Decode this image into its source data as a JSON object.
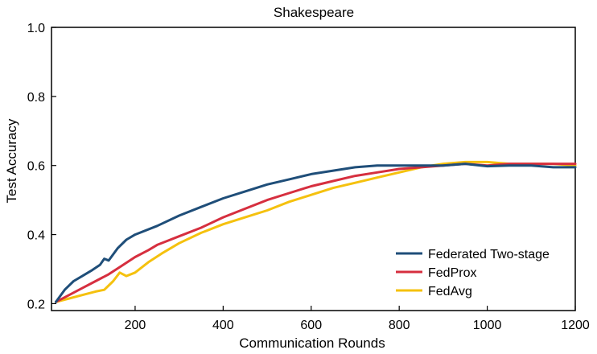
{
  "chart_data": {
    "type": "line",
    "title": "Shakespeare",
    "xlabel": "Communication Rounds",
    "ylabel": "Test  Accuracy",
    "xlim": [
      10,
      1200
    ],
    "ylim": [
      0.18,
      1.0
    ],
    "xticks": [
      200,
      400,
      600,
      800,
      1000,
      1200
    ],
    "xtick_labels": [
      "200",
      "400",
      "600",
      "800",
      "1000",
      "1200"
    ],
    "yticks": [
      0.2,
      0.4,
      0.6,
      0.8,
      1.0
    ],
    "ytick_labels": [
      "0.2",
      "0.4",
      "0.6",
      "0.8",
      "1.0"
    ],
    "grid": false,
    "legend_position": "bottom-right",
    "series": [
      {
        "name": "Federated Two-stage",
        "color": "#1f4e79",
        "x": [
          20,
          40,
          60,
          80,
          100,
          120,
          130,
          140,
          160,
          180,
          200,
          250,
          300,
          350,
          400,
          450,
          500,
          550,
          600,
          650,
          700,
          750,
          800,
          850,
          900,
          950,
          1000,
          1050,
          1100,
          1150,
          1200
        ],
        "y": [
          0.205,
          0.24,
          0.265,
          0.28,
          0.295,
          0.312,
          0.33,
          0.325,
          0.36,
          0.385,
          0.4,
          0.425,
          0.455,
          0.48,
          0.505,
          0.525,
          0.545,
          0.56,
          0.575,
          0.585,
          0.595,
          0.6,
          0.6,
          0.6,
          0.6,
          0.605,
          0.598,
          0.6,
          0.6,
          0.595,
          0.595
        ]
      },
      {
        "name": "FedProx",
        "color": "#d62f3f",
        "x": [
          20,
          50,
          80,
          110,
          140,
          170,
          200,
          230,
          250,
          270,
          300,
          350,
          400,
          450,
          500,
          550,
          600,
          650,
          700,
          750,
          800,
          850,
          900,
          950,
          1000,
          1050,
          1100,
          1150,
          1200
        ],
        "y": [
          0.205,
          0.225,
          0.245,
          0.265,
          0.285,
          0.31,
          0.335,
          0.355,
          0.37,
          0.38,
          0.395,
          0.42,
          0.45,
          0.475,
          0.5,
          0.52,
          0.54,
          0.555,
          0.57,
          0.58,
          0.59,
          0.595,
          0.6,
          0.605,
          0.6,
          0.605,
          0.605,
          0.605,
          0.605
        ]
      },
      {
        "name": "FedAvg",
        "color": "#f5c10e",
        "x": [
          20,
          50,
          80,
          110,
          130,
          150,
          165,
          180,
          200,
          230,
          260,
          300,
          350,
          400,
          450,
          500,
          550,
          600,
          650,
          700,
          750,
          800,
          850,
          900,
          950,
          1000,
          1050,
          1100,
          1150,
          1200
        ],
        "y": [
          0.205,
          0.215,
          0.225,
          0.235,
          0.24,
          0.265,
          0.29,
          0.28,
          0.29,
          0.32,
          0.345,
          0.375,
          0.405,
          0.43,
          0.45,
          0.47,
          0.495,
          0.515,
          0.535,
          0.55,
          0.565,
          0.58,
          0.595,
          0.605,
          0.61,
          0.61,
          0.605,
          0.605,
          0.605,
          0.6
        ]
      }
    ]
  }
}
